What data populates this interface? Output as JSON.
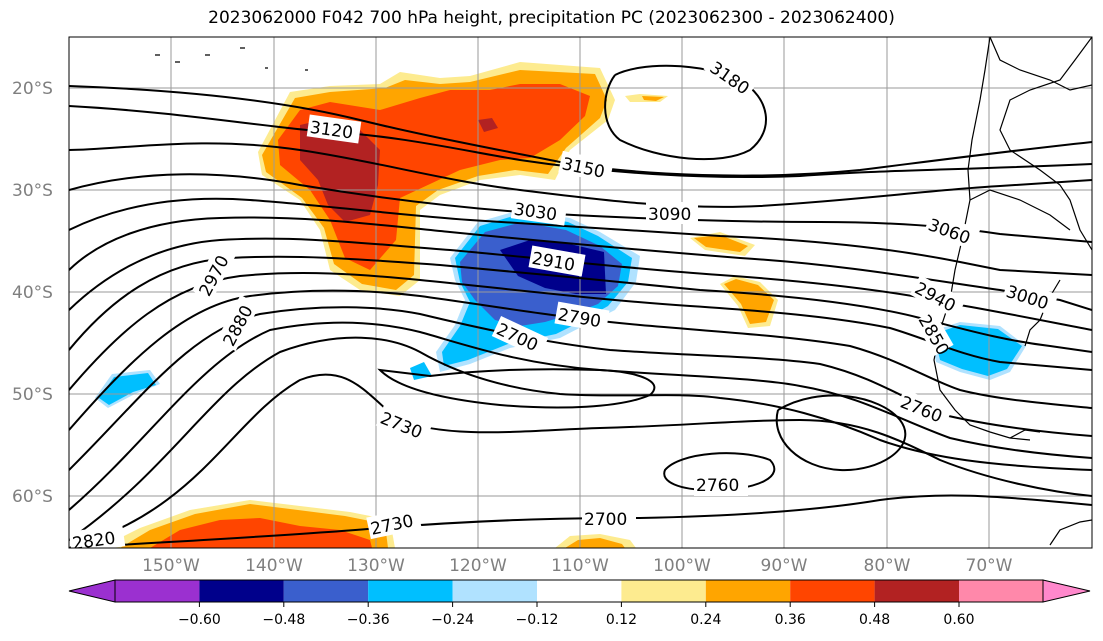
{
  "title": "2023062000 F042 700 hPa height, precipitation PC (2023062300 - 2023062400)",
  "lat_labels": [
    "20°S",
    "30°S",
    "40°S",
    "50°S",
    "60°S"
  ],
  "lon_labels": [
    "150°W",
    "140°W",
    "130°W",
    "120°W",
    "110°W",
    "100°W",
    "90°W",
    "80°W",
    "70°W"
  ],
  "contour_labels": [
    "3180",
    "3120",
    "3150",
    "3090",
    "3030",
    "3060",
    "2970",
    "2910",
    "3000",
    "2940",
    "2880",
    "2790",
    "2850",
    "2700",
    "2730",
    "2760",
    "2760",
    "2730",
    "2820",
    "2700"
  ],
  "colorbar": {
    "ticks": [
      "−0.60",
      "−0.48",
      "−0.36",
      "−0.24",
      "−0.12",
      "0.12",
      "0.24",
      "0.36",
      "0.48",
      "0.60"
    ],
    "colors": [
      "#9b30d0",
      "#00008b",
      "#3a5fcd",
      "#00bfff",
      "#b0e2ff",
      "#ffffff",
      "#fdeb8f",
      "#ffa500",
      "#ff4500",
      "#b22222",
      "#ff88aa",
      "#ff88cc"
    ]
  },
  "shading_colors": {
    "dark_red": "#b22222",
    "red": "#ff4500",
    "orange": "#ffa500",
    "light_yellow": "#fdeb8f",
    "navy": "#00008b",
    "blue": "#3a5fcd",
    "sky": "#00bfff",
    "light_blue": "#b0e2ff"
  }
}
